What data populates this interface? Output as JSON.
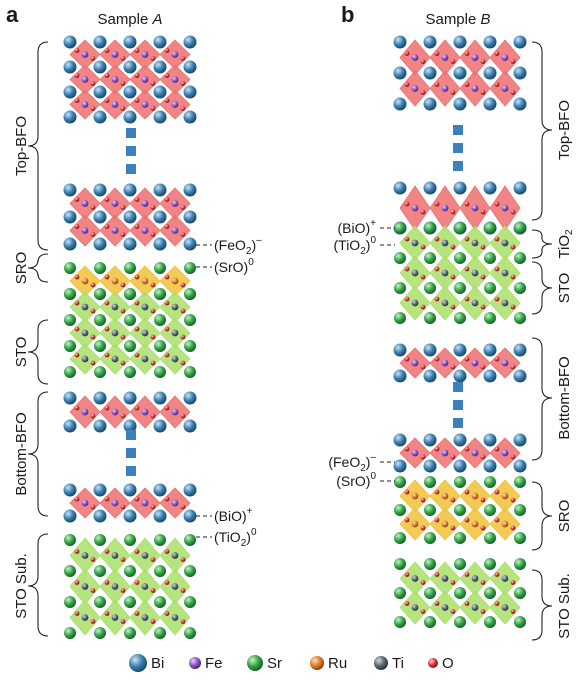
{
  "panels": [
    {
      "letter": "a",
      "title_prefix": "Sample ",
      "title_italic": "A"
    },
    {
      "letter": "b",
      "title_prefix": "Sample ",
      "title_italic": "B"
    }
  ],
  "panel_a": {
    "braces": [
      "Top-BFO",
      "SRO",
      "STO",
      "Bottom-BFO",
      "STO Sub."
    ],
    "terminations": [
      {
        "main": "(FeO",
        "sub": "2",
        "sup": "–"
      },
      {
        "main": "(SrO)",
        "sub": "",
        "sup": "0"
      },
      {
        "main": "(BiO)",
        "sub": "",
        "sup": "+"
      },
      {
        "main": "(TiO",
        "sub": "2",
        "sup": "0"
      }
    ]
  },
  "panel_b": {
    "braces": [
      "Top-BFO",
      "TiO2",
      "STO",
      "Bottom-BFO",
      "SRO",
      "STO Sub."
    ],
    "terminations": [
      {
        "main": "(BiO)",
        "sub": "",
        "sup": "+"
      },
      {
        "main": "(TiO",
        "sub": "2",
        "sup": "0"
      },
      {
        "main": "(FeO",
        "sub": "2",
        "sup": "–"
      },
      {
        "main": "(SrO)",
        "sub": "",
        "sup": "0"
      }
    ]
  },
  "legend": [
    {
      "label": "Bi",
      "color": "#3c7fb0"
    },
    {
      "label": "Fe",
      "color": "#8c56c9"
    },
    {
      "label": "Sr",
      "color": "#35a448"
    },
    {
      "label": "Ru",
      "color": "#e07d2a"
    },
    {
      "label": "Ti",
      "color": "#5a6876"
    },
    {
      "label": "O",
      "color": "#d9363b"
    }
  ],
  "colors": {
    "bfo_octahedra": "#ee6f6f",
    "sro_octahedra": "#f0c23a",
    "sto_octahedra": "#a9e06a",
    "gap_bar": "#3e7fbd"
  }
}
